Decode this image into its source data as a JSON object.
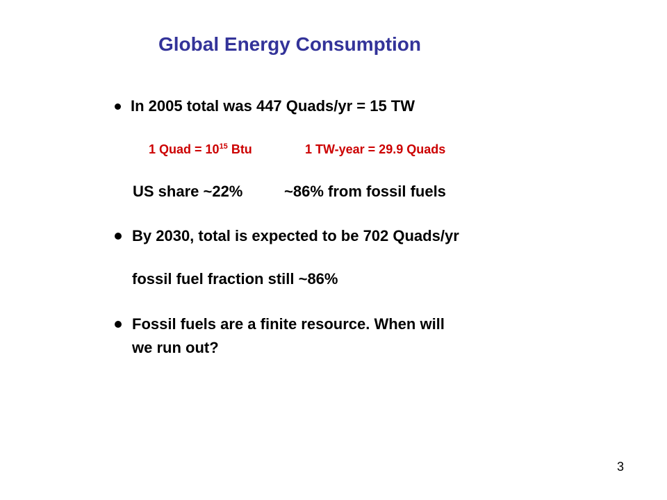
{
  "slide": {
    "title": "Global Energy Consumption",
    "bullet1": "In 2005 total was 447 Quads/yr = 15 TW",
    "conversion": {
      "quad_prefix": "1 Quad = 10",
      "quad_exponent": "15",
      "quad_suffix": " Btu",
      "tw_year": "1 TW-year = 29.9 Quads"
    },
    "us_share": "US share ~22%",
    "fossil_share": "~86% from fossil fuels",
    "bullet2": "By 2030, total is expected to be 702 Quads/yr",
    "fossil_fraction": "fossil fuel fraction still ~86%",
    "bullet3_line1": "Fossil fuels are a finite resource.  When will",
    "bullet3_line2": "we run out?",
    "page_number": "3"
  },
  "colors": {
    "title": "#333399",
    "highlight": "#cc0000",
    "text": "#000000"
  }
}
